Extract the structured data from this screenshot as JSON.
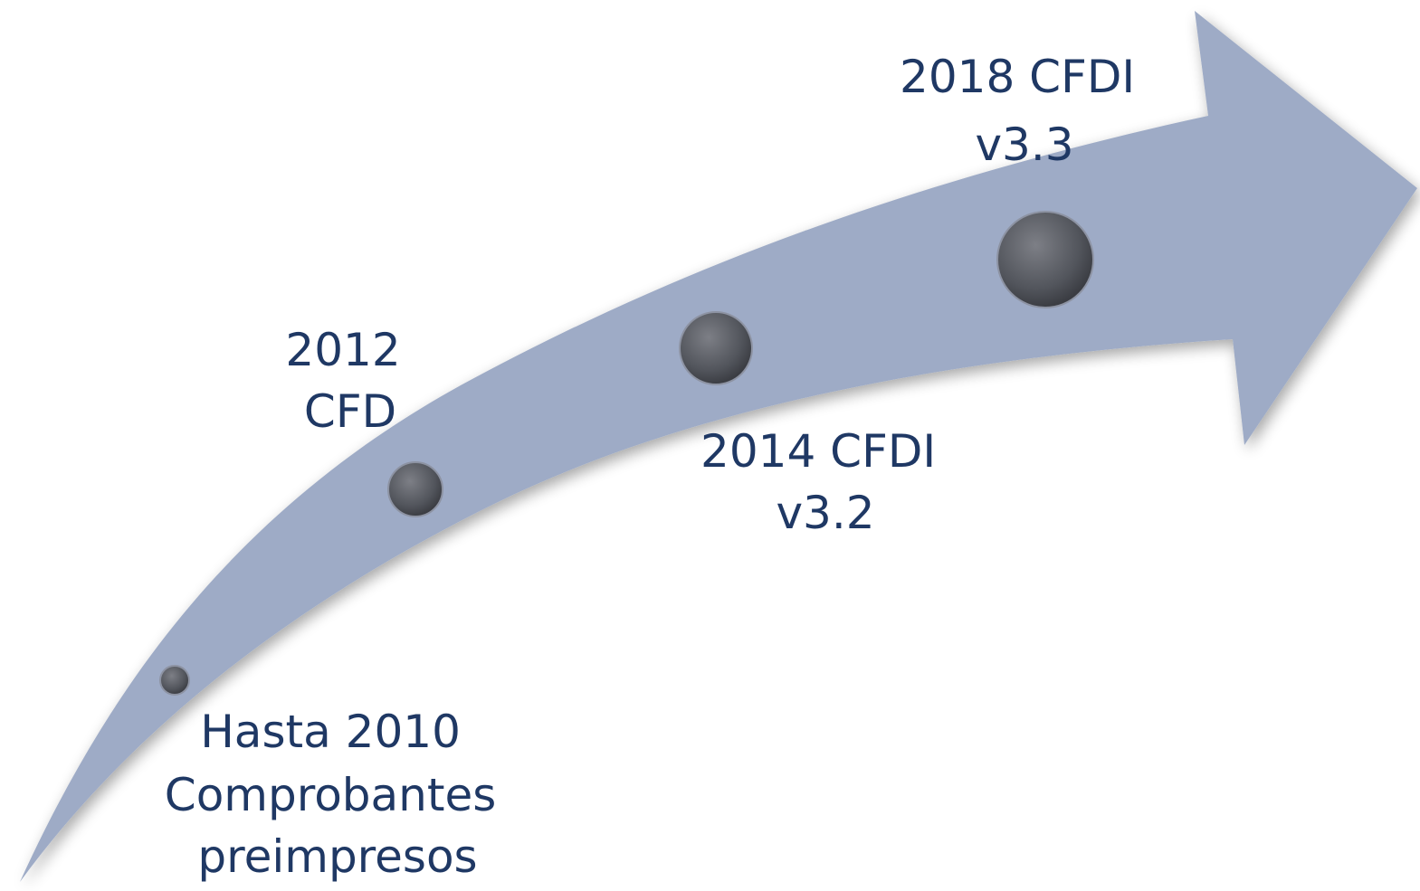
{
  "milestones": [
    {
      "lines": [
        "Hasta 2010",
        "Comprobantes",
        "preimpresos"
      ]
    },
    {
      "lines": [
        "2012",
        "CFD"
      ]
    },
    {
      "lines": [
        "2014 CFDI",
        "v3.2"
      ]
    },
    {
      "lines": [
        "2018 CFDI",
        "v3.3"
      ]
    }
  ]
}
